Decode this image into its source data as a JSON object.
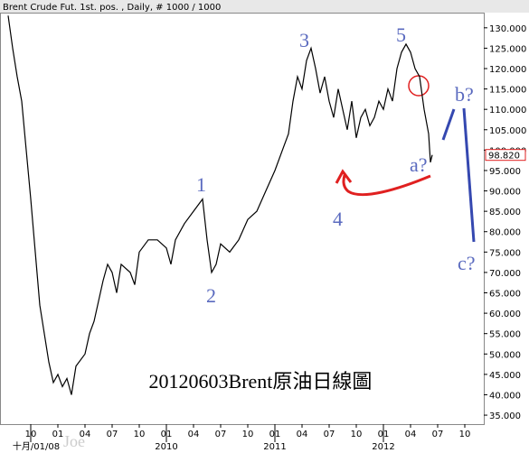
{
  "chart_data": {
    "type": "line",
    "header": "Brent Crude Fut. 1st. pos. , Daily, # 1000 / 1000",
    "title": "20120603Brent原油日線圖",
    "watermark": "Joe",
    "series": [
      {
        "name": "Brent Crude Fut. 1st. pos.",
        "color": "#000000",
        "x": [
          6.5,
          7,
          7.5,
          8,
          8.5,
          9,
          9.5,
          10,
          10.5,
          11,
          11.5,
          12,
          12.5,
          13,
          13.5,
          14,
          15,
          15.5,
          16,
          17,
          17.5,
          18,
          18.5,
          19,
          20,
          20.5,
          21,
          22,
          23,
          24,
          24.5,
          25,
          26,
          27,
          28,
          28.5,
          29,
          29.5,
          30,
          31,
          32,
          33,
          34,
          35,
          36,
          37,
          37.5,
          38,
          38.5,
          39,
          39.5,
          40,
          40.5,
          41,
          41.5,
          42,
          42.5,
          43,
          43.5,
          44,
          44.5,
          45,
          45.5,
          46,
          46.5,
          47,
          47.5,
          48,
          48.5,
          49,
          49.5,
          50,
          50.5,
          51,
          51.5,
          52,
          52.5,
          53,
          53.2,
          53.4
        ],
        "values": [
          133,
          125,
          118,
          112,
          100,
          88,
          75,
          62,
          55,
          48,
          43,
          45,
          42,
          44,
          40,
          47,
          50,
          55,
          58,
          68,
          72,
          70,
          65,
          72,
          70,
          67,
          75,
          78,
          78,
          76,
          72,
          78,
          82,
          85,
          88,
          78,
          70,
          72,
          77,
          75,
          78,
          83,
          85,
          90,
          95,
          101,
          104,
          112,
          118,
          115,
          122,
          125,
          120,
          114,
          118,
          112,
          108,
          115,
          110,
          105,
          112,
          103,
          108,
          110,
          106,
          108,
          112,
          110,
          115,
          112,
          120,
          124,
          126,
          124,
          120,
          118,
          110,
          104,
          97,
          98.82
        ]
      }
    ],
    "last_price": {
      "value": 98.82,
      "label": "98.820"
    },
    "annotations": [
      "1",
      "2",
      "3",
      "4",
      "5",
      "a?",
      "b?",
      "c?"
    ],
    "xlim": [
      5.6,
      59.1
    ],
    "xticks": [
      {
        "value": 9,
        "label": "10"
      },
      {
        "value": 12,
        "label": "01"
      },
      {
        "value": 15,
        "label": "04"
      },
      {
        "value": 18,
        "label": "07"
      },
      {
        "value": 21,
        "label": "10"
      },
      {
        "value": 24,
        "label": "01"
      },
      {
        "value": 27,
        "label": "04"
      },
      {
        "value": 30,
        "label": "07"
      },
      {
        "value": 33,
        "label": "10"
      },
      {
        "value": 36,
        "label": "01"
      },
      {
        "value": 39,
        "label": "04"
      },
      {
        "value": 42,
        "label": "07"
      },
      {
        "value": 45,
        "label": "10"
      },
      {
        "value": 48,
        "label": "01"
      },
      {
        "value": 51,
        "label": "04"
      },
      {
        "value": 54,
        "label": "07"
      },
      {
        "value": 57,
        "label": "10"
      }
    ],
    "xticks_major": [
      {
        "value": 9,
        "label": "十月/01/08"
      },
      {
        "value": 24,
        "label": "2010"
      },
      {
        "value": 36,
        "label": "2011"
      },
      {
        "value": 48,
        "label": "2012"
      }
    ],
    "ylim": [
      32.8,
      133.5
    ],
    "yticks": [
      {
        "value": 35,
        "label": "35.000"
      },
      {
        "value": 40,
        "label": "40.000"
      },
      {
        "value": 45,
        "label": "45.000"
      },
      {
        "value": 50,
        "label": "50.000"
      },
      {
        "value": 55,
        "label": "55.000"
      },
      {
        "value": 60,
        "label": "60.000"
      },
      {
        "value": 65,
        "label": "65.000"
      },
      {
        "value": 70,
        "label": "70.000"
      },
      {
        "value": 75,
        "label": "75.000"
      },
      {
        "value": 80,
        "label": "80.000"
      },
      {
        "value": 85,
        "label": "85.000"
      },
      {
        "value": 90,
        "label": "90.000"
      },
      {
        "value": 95,
        "label": "95.000"
      },
      {
        "value": 100,
        "label": "100.000"
      },
      {
        "value": 105,
        "label": "105.000"
      },
      {
        "value": 110,
        "label": "110.000"
      },
      {
        "value": 115,
        "label": "115.000"
      },
      {
        "value": 120,
        "label": "120.000"
      },
      {
        "value": 125,
        "label": "125.000"
      },
      {
        "value": 130,
        "label": "130.000"
      }
    ]
  }
}
